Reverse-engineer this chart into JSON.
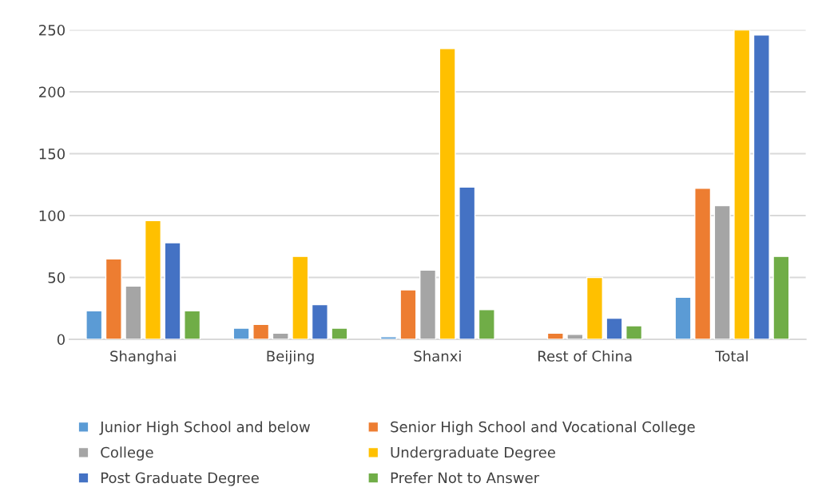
{
  "chart_data": {
    "type": "bar",
    "categories": [
      "Shanghai",
      "Beijing",
      "Shanxi",
      "Rest of China",
      "Total"
    ],
    "series": [
      {
        "name": "Junior High School and below",
        "color": "#5b9bd5",
        "values": [
          23,
          9,
          2,
          null,
          34
        ]
      },
      {
        "name": "Senior High School and Vocational College",
        "color": "#ed7d31",
        "values": [
          65,
          12,
          40,
          5,
          122
        ]
      },
      {
        "name": "College",
        "color": "#a5a5a5",
        "values": [
          43,
          5,
          56,
          4,
          108
        ]
      },
      {
        "name": "Undergraduate Degree",
        "color": "#ffc000",
        "values": [
          96,
          67,
          235,
          50,
          250
        ]
      },
      {
        "name": "Post Graduate Degree",
        "color": "#4472c4",
        "values": [
          78,
          28,
          123,
          17,
          246
        ]
      },
      {
        "name": "Prefer Not to Answer",
        "color": "#70ad47",
        "values": [
          23,
          9,
          24,
          11,
          67
        ]
      }
    ],
    "ylim": [
      0,
      250
    ],
    "yticks": [
      0,
      50,
      100,
      150,
      200,
      250
    ],
    "grid": "y",
    "legend": "bottom"
  }
}
